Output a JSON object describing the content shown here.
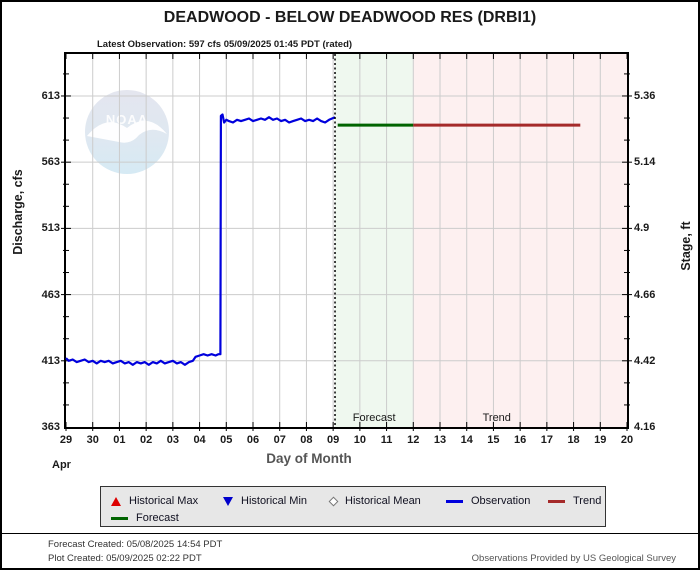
{
  "header": {
    "title": "DEADWOOD - BELOW DEADWOOD RES  (DRBI1)",
    "subtitle": "Latest Observation: 597 cfs 05/09/2025 01:45 PDT (rated)"
  },
  "axes": {
    "left": {
      "title": "Discharge, cfs",
      "ticks": [
        "613",
        "563",
        "513",
        "463",
        "413",
        "363"
      ]
    },
    "right": {
      "title": "Stage, ft",
      "ticks": [
        "5.36",
        "5.14",
        "4.9",
        "4.66",
        "4.42",
        "4.16"
      ]
    },
    "x": {
      "title": "Day of Month",
      "month": "Apr",
      "ticks": [
        "29",
        "30",
        "01",
        "02",
        "03",
        "04",
        "05",
        "06",
        "07",
        "08",
        "09",
        "10",
        "11",
        "12",
        "13",
        "14",
        "15",
        "16",
        "17",
        "18",
        "19",
        "20"
      ]
    }
  },
  "watermark": {
    "text": "NOAA"
  },
  "chart_data": {
    "type": "line",
    "title": "DEADWOOD - BELOW DEADWOOD RES  (DRBI1)",
    "xlabel": "Day of Month",
    "ylabel": "Discharge, cfs",
    "y2label": "Stage, ft",
    "x_unit": "days since Apr 29 2025",
    "xlim": [
      0,
      21
    ],
    "ylim": [
      363,
      644.7
    ],
    "grid": true,
    "y_left_ticks": [
      613,
      563,
      513,
      463,
      413,
      363
    ],
    "y_right_ticks": [
      5.36,
      5.14,
      4.9,
      4.66,
      4.42,
      4.16
    ],
    "now_line_x": 10.07,
    "regions": [
      {
        "label": "Forecast",
        "from": 10.07,
        "to": 13,
        "color": "#eff8ef"
      },
      {
        "label": "Trend",
        "from": 13,
        "to": 21,
        "color": "#fdf0f0"
      }
    ],
    "series": [
      {
        "name": "Observation",
        "color": "#0000dd",
        "width": 2.2,
        "points": [
          [
            0,
            415
          ],
          [
            0.1,
            413
          ],
          [
            0.25,
            414
          ],
          [
            0.4,
            412
          ],
          [
            0.55,
            413
          ],
          [
            0.7,
            414
          ],
          [
            0.85,
            412
          ],
          [
            1,
            413
          ],
          [
            1.15,
            411
          ],
          [
            1.3,
            413
          ],
          [
            1.45,
            412
          ],
          [
            1.6,
            413
          ],
          [
            1.75,
            411
          ],
          [
            1.9,
            412
          ],
          [
            2.05,
            413
          ],
          [
            2.2,
            411
          ],
          [
            2.35,
            412
          ],
          [
            2.5,
            410
          ],
          [
            2.65,
            412
          ],
          [
            2.8,
            411
          ],
          [
            2.95,
            412
          ],
          [
            3.1,
            410
          ],
          [
            3.25,
            412
          ],
          [
            3.4,
            411
          ],
          [
            3.55,
            413
          ],
          [
            3.7,
            411
          ],
          [
            3.85,
            412
          ],
          [
            4,
            413
          ],
          [
            4.15,
            411
          ],
          [
            4.3,
            412
          ],
          [
            4.45,
            410
          ],
          [
            4.6,
            412
          ],
          [
            4.75,
            413
          ],
          [
            4.85,
            416
          ],
          [
            5,
            417
          ],
          [
            5.15,
            418
          ],
          [
            5.3,
            417
          ],
          [
            5.45,
            418
          ],
          [
            5.6,
            417
          ],
          [
            5.7,
            418
          ],
          [
            5.78,
            418
          ],
          [
            5.8,
            598
          ],
          [
            5.86,
            599
          ],
          [
            5.92,
            593
          ],
          [
            6,
            595
          ],
          [
            6.1,
            594
          ],
          [
            6.25,
            593
          ],
          [
            6.4,
            595
          ],
          [
            6.55,
            594
          ],
          [
            6.7,
            595
          ],
          [
            6.85,
            596
          ],
          [
            7,
            594
          ],
          [
            7.15,
            595
          ],
          [
            7.3,
            596
          ],
          [
            7.45,
            595
          ],
          [
            7.6,
            597
          ],
          [
            7.75,
            595
          ],
          [
            7.9,
            596
          ],
          [
            8.05,
            594
          ],
          [
            8.2,
            595
          ],
          [
            8.35,
            593
          ],
          [
            8.5,
            594
          ],
          [
            8.65,
            595
          ],
          [
            8.8,
            596
          ],
          [
            8.95,
            594
          ],
          [
            9.1,
            595
          ],
          [
            9.25,
            594
          ],
          [
            9.4,
            596
          ],
          [
            9.55,
            594
          ],
          [
            9.7,
            593
          ],
          [
            9.85,
            595
          ],
          [
            10.07,
            597
          ]
        ]
      },
      {
        "name": "Forecast",
        "color": "#006400",
        "width": 3,
        "points": [
          [
            10.17,
            591
          ],
          [
            13,
            591
          ]
        ]
      },
      {
        "name": "Trend",
        "color": "#a52a2a",
        "width": 3,
        "points": [
          [
            13,
            591
          ],
          [
            19.25,
            591
          ]
        ]
      }
    ]
  },
  "legend": {
    "items": [
      {
        "label": "Historical Max",
        "marker": "triangle-up",
        "color": "#dd0000"
      },
      {
        "label": "Historical Min",
        "marker": "triangle-down",
        "color": "#0000cc"
      },
      {
        "label": "Historical Mean",
        "marker": "diamond",
        "color": "#777777"
      },
      {
        "label": "Observation",
        "marker": "line",
        "color": "#0000dd"
      },
      {
        "label": "Trend",
        "marker": "line",
        "color": "#a52a2a"
      },
      {
        "label": "Forecast",
        "marker": "line",
        "color": "#006400"
      }
    ]
  },
  "footer": {
    "forecast_created": "Forecast Created: 05/08/2025 14:54 PDT",
    "plot_created": "Plot Created: 05/09/2025 02:22 PDT",
    "provider": "Observations Provided by US Geological Survey"
  },
  "colors": {
    "observation": "#0000dd",
    "forecast": "#006400",
    "trend": "#a52a2a",
    "forecast_region": "#eff8ef",
    "trend_region": "#fdf0f0",
    "gridline": "#cccccc",
    "now_line": "#000000",
    "legend_bg": "#e7e7e7"
  }
}
